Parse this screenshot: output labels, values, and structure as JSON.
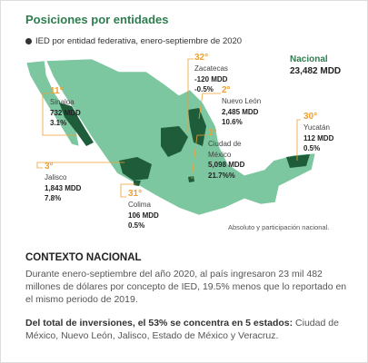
{
  "header": {
    "title": "Posiciones por entidades",
    "subtitle": "IED por entidad federativa, enero-septiembre de 2020"
  },
  "national": {
    "label": "Nacional",
    "value": "23,482 MDD"
  },
  "states": [
    {
      "rank": "32°",
      "name": "Zacatecas",
      "amount": "-120 MDD",
      "share": "-0.5%"
    },
    {
      "rank": "2°",
      "name": "Nuevo León",
      "amount": "2,485 MDD",
      "share": "10.6%"
    },
    {
      "rank": "11°",
      "name": "Sinaloa",
      "amount": "732 MDD",
      "share": "3.1%"
    },
    {
      "rank": "30°",
      "name": "Yucatán",
      "amount": "112 MDD",
      "share": "0.5%"
    },
    {
      "rank": "1°",
      "name": "Ciudad de México",
      "amount": "5,098 MDD",
      "share": "21.7%%"
    },
    {
      "rank": "3°",
      "name": "Jalisco",
      "amount": "1,843 MDD",
      "share": "7.8%"
    },
    {
      "rank": "31°",
      "name": "Colima",
      "amount": "106 MDD",
      "share": "0.5%"
    }
  ],
  "note": "Absoluto y participación nacional.",
  "context": {
    "title": "CONTEXTO NACIONAL",
    "paragraph": "Durante enero-septiembre del año 2020, al país ingresaron 23 mil 482 millones de dólares por concepto de IED, 19.5% menos que lo reportado en el mismo periodo de 2019.",
    "summary_bold": "Del total de inversiones, el 53% se concentra en 5 estados:",
    "summary_rest": "Ciudad de México, Nuevo León, Jalisco, Estado de México y Veracruz."
  }
}
